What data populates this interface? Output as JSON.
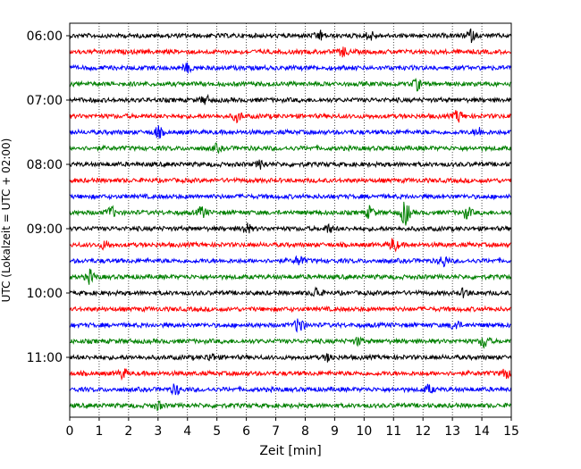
{
  "chart_data": {
    "type": "line",
    "title": "",
    "xlabel": "Zeit  [min]",
    "ylabel": "UTC (Lokalzeit = UTC + 02:00)",
    "xlim": [
      0,
      15
    ],
    "x_ticks": [
      "0",
      "1",
      "2",
      "3",
      "4",
      "5",
      "6",
      "7",
      "8",
      "9",
      "10",
      "11",
      "12",
      "13",
      "14",
      "15"
    ],
    "y_ticks": [
      "06:00",
      "07:00",
      "08:00",
      "09:00",
      "10:00",
      "11:00"
    ],
    "grid": "vertical dotted at each minute",
    "trace_colors": [
      "#000000",
      "#ff0000",
      "#0000ff",
      "#008000"
    ],
    "trace_start_times": [
      "06:00",
      "06:15",
      "06:30",
      "06:45",
      "07:00",
      "07:15",
      "07:30",
      "07:45",
      "08:00",
      "08:15",
      "08:30",
      "08:45",
      "09:00",
      "09:15",
      "09:30",
      "09:45",
      "10:00",
      "10:15",
      "10:30",
      "10:45",
      "11:00",
      "11:15",
      "11:30",
      "11:45"
    ],
    "events": [
      {
        "trace": 0,
        "minute": 8.5,
        "amp": 1.2
      },
      {
        "trace": 0,
        "minute": 10.2,
        "amp": 1.1
      },
      {
        "trace": 0,
        "minute": 13.6,
        "amp": 1.5
      },
      {
        "trace": 1,
        "minute": 9.3,
        "amp": 1.1
      },
      {
        "trace": 2,
        "minute": 4.0,
        "amp": 1.0
      },
      {
        "trace": 3,
        "minute": 11.8,
        "amp": 1.3
      },
      {
        "trace": 4,
        "minute": 4.6,
        "amp": 1.0
      },
      {
        "trace": 5,
        "minute": 5.7,
        "amp": 1.3
      },
      {
        "trace": 5,
        "minute": 13.2,
        "amp": 1.4
      },
      {
        "trace": 6,
        "minute": 3.0,
        "amp": 1.3
      },
      {
        "trace": 6,
        "minute": 13.9,
        "amp": 1.0
      },
      {
        "trace": 7,
        "minute": 5.0,
        "amp": 0.8
      },
      {
        "trace": 8,
        "minute": 6.5,
        "amp": 1.0
      },
      {
        "trace": 11,
        "minute": 1.4,
        "amp": 1.4
      },
      {
        "trace": 11,
        "minute": 4.5,
        "amp": 1.4
      },
      {
        "trace": 11,
        "minute": 10.2,
        "amp": 1.5
      },
      {
        "trace": 11,
        "minute": 11.4,
        "amp": 3.2
      },
      {
        "trace": 11,
        "minute": 13.5,
        "amp": 1.4
      },
      {
        "trace": 12,
        "minute": 6.0,
        "amp": 1.3
      },
      {
        "trace": 12,
        "minute": 8.8,
        "amp": 0.9
      },
      {
        "trace": 13,
        "minute": 1.2,
        "amp": 1.0
      },
      {
        "trace": 13,
        "minute": 11.0,
        "amp": 1.7
      },
      {
        "trace": 14,
        "minute": 7.8,
        "amp": 1.2
      },
      {
        "trace": 14,
        "minute": 12.7,
        "amp": 1.4
      },
      {
        "trace": 15,
        "minute": 0.7,
        "amp": 1.6
      },
      {
        "trace": 16,
        "minute": 8.4,
        "amp": 1.4
      },
      {
        "trace": 16,
        "minute": 13.4,
        "amp": 1.0
      },
      {
        "trace": 18,
        "minute": 7.8,
        "amp": 2.2
      },
      {
        "trace": 18,
        "minute": 13.1,
        "amp": 1.3
      },
      {
        "trace": 19,
        "minute": 14.1,
        "amp": 1.7
      },
      {
        "trace": 19,
        "minute": 9.8,
        "amp": 0.9
      },
      {
        "trace": 20,
        "minute": 4.8,
        "amp": 0.9
      },
      {
        "trace": 20,
        "minute": 8.8,
        "amp": 0.9
      },
      {
        "trace": 21,
        "minute": 1.8,
        "amp": 1.2
      },
      {
        "trace": 21,
        "minute": 14.8,
        "amp": 1.1
      },
      {
        "trace": 22,
        "minute": 3.6,
        "amp": 1.3
      },
      {
        "trace": 22,
        "minute": 12.2,
        "amp": 1.0
      },
      {
        "trace": 23,
        "minute": 3.0,
        "amp": 0.9
      }
    ]
  }
}
